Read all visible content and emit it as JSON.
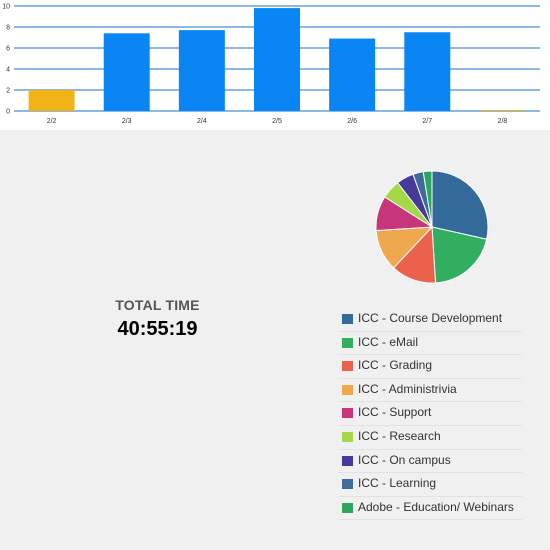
{
  "chart_data": [
    {
      "type": "bar",
      "categories": [
        "2/2",
        "2/3",
        "2/4",
        "2/5",
        "2/6",
        "2/7",
        "2/8"
      ],
      "values": [
        2.0,
        7.4,
        7.7,
        9.8,
        6.9,
        7.5,
        0.05
      ],
      "bar_colors": [
        "#f1b416",
        "#0a86f4",
        "#0a86f4",
        "#0a86f4",
        "#0a86f4",
        "#0a86f4",
        "#f1b416"
      ],
      "ylim": [
        0,
        10
      ],
      "yticks": [
        0,
        2,
        4,
        6,
        8,
        10
      ],
      "grid": true,
      "gridline_color": "#1a73c9"
    },
    {
      "type": "pie",
      "slices": [
        {
          "label": "ICC - Course Development",
          "value": 28.5,
          "color": "#346a9a"
        },
        {
          "label": "ICC - eMail",
          "value": 20.5,
          "color": "#31ae5f"
        },
        {
          "label": "ICC - Grading",
          "value": 13.0,
          "color": "#ec614b"
        },
        {
          "label": "ICC - Administrivia",
          "value": 12.0,
          "color": "#efa84d"
        },
        {
          "label": "ICC - Support",
          "value": 10.0,
          "color": "#c8357a"
        },
        {
          "label": "ICC - Research",
          "value": 5.5,
          "color": "#a3d949"
        },
        {
          "label": "ICC - On campus",
          "value": 5.0,
          "color": "#46399a"
        },
        {
          "label": "ICC - Learning",
          "value": 3.0,
          "color": "#3f6b9a"
        },
        {
          "label": "Adobe - Education/ Webinars",
          "value": 2.5,
          "color": "#2ca65e"
        }
      ],
      "legend_position": "bottom-right"
    }
  ],
  "summary": {
    "total_label": "TOTAL TIME",
    "total_value": "40:55:19"
  }
}
